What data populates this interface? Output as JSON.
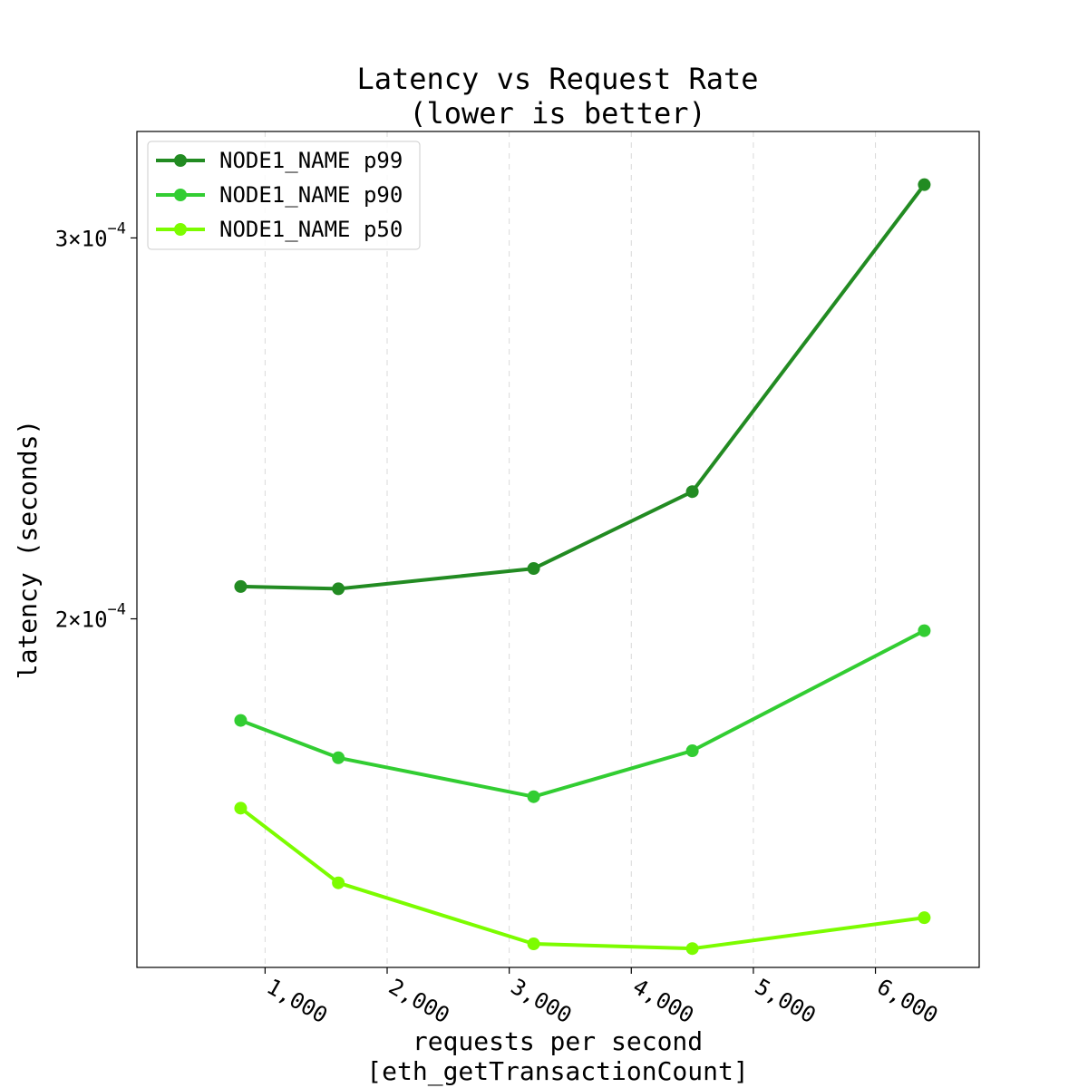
{
  "chart_data": {
    "type": "line",
    "title_lines": [
      "Latency vs Request Rate",
      "(lower is better)"
    ],
    "xlabel_lines": [
      "requests per second",
      "[eth_getTransactionCount]"
    ],
    "ylabel": "latency (seconds)",
    "x_scale": "linear",
    "y_scale": "log",
    "xlim": [
      -50,
      6850
    ],
    "ylim": [
      0.000138,
      0.000336
    ],
    "x_ticks": [
      1000,
      2000,
      3000,
      4000,
      5000,
      6000
    ],
    "x_tick_labels": [
      "1,000",
      "2,000",
      "3,000",
      "4,000",
      "5,000",
      "6,000"
    ],
    "y_ticks": [
      0.0003,
      0.0002
    ],
    "y_tick_labels": [
      {
        "mantissa": "3",
        "times": "×",
        "base": "10",
        "exponent": "−4"
      },
      {
        "mantissa": "2",
        "times": "×",
        "base": "10",
        "exponent": "−4"
      }
    ],
    "grid": "vertical dashed",
    "legend_position": "top-left",
    "x": [
      800,
      1600,
      3200,
      4500,
      6400
    ],
    "series": [
      {
        "name": "NODE1_NAME p99",
        "color": "#228b22",
        "values": [
          0.000207,
          0.0002065,
          0.000211,
          0.000229,
          0.0003175
        ]
      },
      {
        "name": "NODE1_NAME p90",
        "color": "#32cd32",
        "values": [
          0.0001795,
          0.0001725,
          0.0001655,
          0.0001738,
          0.0001975
        ]
      },
      {
        "name": "NODE1_NAME p50",
        "color": "#7cfc00",
        "values": [
          0.0001635,
          0.000151,
          0.0001415,
          0.0001408,
          0.0001455
        ]
      }
    ]
  }
}
